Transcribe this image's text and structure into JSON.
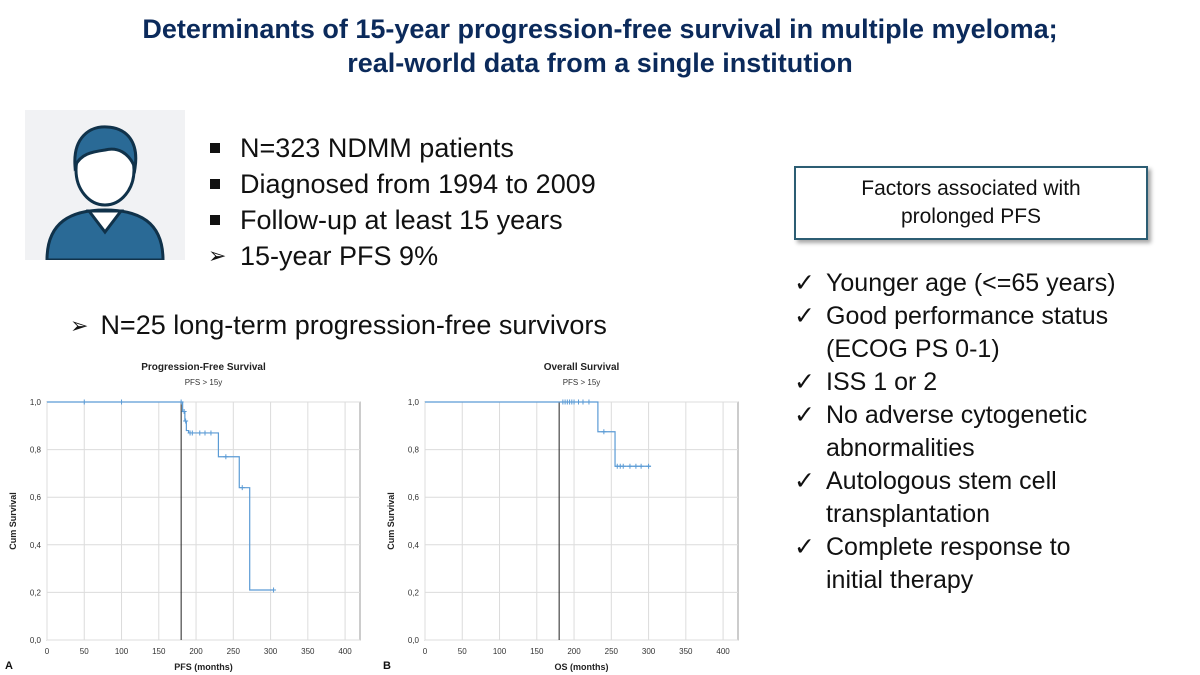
{
  "title": {
    "line1": "Determinants of 15-year progression-free survival in multiple myeloma;",
    "line2": "real-world data from a single institution"
  },
  "avatar": {
    "icon": "person-avatar-icon",
    "color": "#2a6a96"
  },
  "bullets": [
    {
      "marker": "square",
      "text": "N=323 NDMM patients"
    },
    {
      "marker": "square",
      "text": "Diagnosed from 1994 to 2009"
    },
    {
      "marker": "square",
      "text": "Follow-up at least 15 years"
    },
    {
      "marker": "arrow",
      "text": "15-year PFS 9%"
    }
  ],
  "survivors": "N=25 long-term progression-free survivors",
  "factors_box": {
    "line1": "Factors associated with",
    "line2": "prolonged PFS"
  },
  "factors": [
    {
      "lines": [
        "Younger age (<=65 years)"
      ]
    },
    {
      "lines": [
        "Good performance status",
        "(ECOG PS 0-1)"
      ]
    },
    {
      "lines": [
        "ISS 1 or 2"
      ]
    },
    {
      "lines": [
        "No adverse cytogenetic",
        "abnormalities"
      ]
    },
    {
      "lines": [
        "Autologous stem cell",
        "transplantation"
      ]
    },
    {
      "lines": [
        "Complete response to",
        "initial therapy"
      ]
    }
  ],
  "glyphs": {
    "square": "■",
    "arrow": "➢",
    "check": "✓"
  },
  "colors": {
    "title": "#0b2a5b",
    "curve": "#5b9bd5",
    "box_border": "#2c5d73"
  },
  "chart_data": [
    {
      "panel": "A",
      "type": "line",
      "title": "Progression-Free Survival",
      "subtitle": "PFS > 15y",
      "xlabel": "PFS (months)",
      "ylabel": "Cum Survival",
      "xlim": [
        0,
        420
      ],
      "ylim": [
        0,
        1.0
      ],
      "xticks": [
        0,
        50,
        100,
        150,
        200,
        250,
        300,
        350,
        400
      ],
      "yticks": [
        0.0,
        0.2,
        0.4,
        0.6,
        0.8,
        1.0
      ],
      "ytick_labels": [
        "0,0",
        "0,2",
        "0,4",
        "0,6",
        "0,8",
        "1,0"
      ],
      "reference_x": 180,
      "series": [
        {
          "name": "PFS",
          "steps": [
            [
              0,
              1.0
            ],
            [
              182,
              0.96
            ],
            [
              185,
              0.92
            ],
            [
              187,
              0.88
            ],
            [
              190,
              0.87
            ],
            [
              230,
              0.77
            ],
            [
              258,
              0.64
            ],
            [
              272,
              0.21
            ],
            [
              305,
              0.21
            ]
          ],
          "censored": [
            [
              50,
              1.0
            ],
            [
              100,
              1.0
            ],
            [
              180,
              1.0
            ],
            [
              184,
              0.96
            ],
            [
              186,
              0.92
            ],
            [
              192,
              0.87
            ],
            [
              195,
              0.87
            ],
            [
              205,
              0.87
            ],
            [
              212,
              0.87
            ],
            [
              220,
              0.87
            ],
            [
              240,
              0.77
            ],
            [
              262,
              0.64
            ],
            [
              304,
              0.21
            ]
          ]
        }
      ]
    },
    {
      "panel": "B",
      "type": "line",
      "title": "Overall Survival",
      "subtitle": "PFS > 15y",
      "xlabel": "OS (months)",
      "ylabel": "Cum Survival",
      "xlim": [
        0,
        420
      ],
      "ylim": [
        0,
        1.0
      ],
      "xticks": [
        0,
        50,
        100,
        150,
        200,
        250,
        300,
        350,
        400
      ],
      "yticks": [
        0.0,
        0.2,
        0.4,
        0.6,
        0.8,
        1.0
      ],
      "ytick_labels": [
        "0,0",
        "0,2",
        "0,4",
        "0,6",
        "0,8",
        "1,0"
      ],
      "reference_x": 180,
      "series": [
        {
          "name": "OS",
          "steps": [
            [
              0,
              1.0
            ],
            [
              232,
              0.875
            ],
            [
              255,
              0.73
            ],
            [
              303,
              0.73
            ]
          ],
          "censored": [
            [
              185,
              1.0
            ],
            [
              188,
              1.0
            ],
            [
              191,
              1.0
            ],
            [
              194,
              1.0
            ],
            [
              197,
              1.0
            ],
            [
              200,
              1.0
            ],
            [
              206,
              1.0
            ],
            [
              212,
              1.0
            ],
            [
              220,
              1.0
            ],
            [
              240,
              0.875
            ],
            [
              258,
              0.73
            ],
            [
              262,
              0.73
            ],
            [
              266,
              0.73
            ],
            [
              275,
              0.73
            ],
            [
              283,
              0.73
            ],
            [
              290,
              0.73
            ],
            [
              300,
              0.73
            ]
          ]
        }
      ]
    }
  ]
}
